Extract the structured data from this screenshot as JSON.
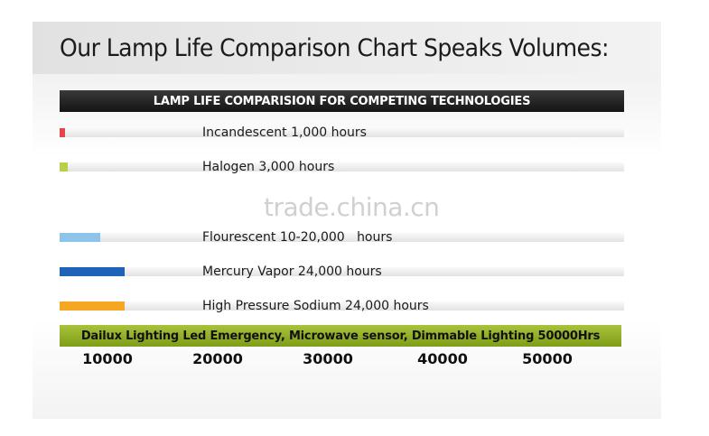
{
  "page_title": "Our Lamp Life Comparison Chart Speaks Volumes:",
  "watermark": "trade.china.cn",
  "chart_data": {
    "type": "bar",
    "title": "LAMP LIFE COMPARISION FOR COMPETING TECHNOLOGIES",
    "categories": [
      "Incandescent 1,000 hours",
      "Halogen 3,000 hours",
      "Flourescent 10-20,000   hours",
      "Mercury Vapor 24,000 hours",
      "High Pressure Sodium 24,000 hours",
      "Dailux Lighting Led Emergency, Microwave sensor, Dimmable Lighting 50000Hrs"
    ],
    "values": [
      1000,
      3000,
      15000,
      24000,
      24000,
      50000
    ],
    "colors": [
      "#e5444a",
      "#b8cf47",
      "#8ec3ea",
      "#1e63b8",
      "#f5a623",
      "#97b52b"
    ],
    "xticks": [
      "10000",
      "20000",
      "30000",
      "40000",
      "50000"
    ],
    "xlim": [
      0,
      50000
    ]
  }
}
